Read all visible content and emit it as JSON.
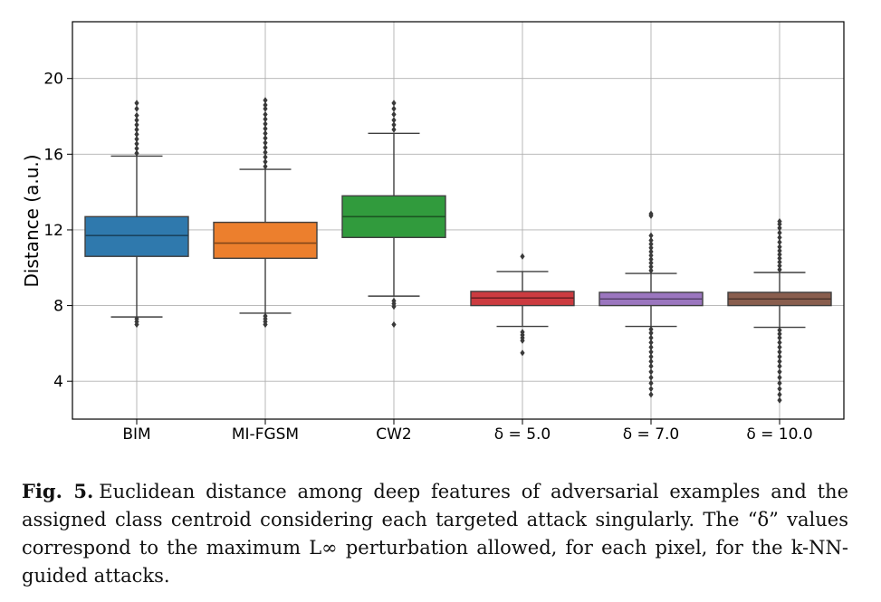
{
  "chart_data": {
    "type": "box",
    "title": "",
    "xlabel": "",
    "ylabel": "Distance (a.u.)",
    "ylim": [
      2,
      23
    ],
    "yticks": [
      4,
      8,
      12,
      16,
      20
    ],
    "grid": true,
    "categories": [
      "BIM",
      "MI-FGSM",
      "CW2",
      "δ = 5.0",
      "δ = 7.0",
      "δ = 10.0"
    ],
    "colors": [
      "#2f79ad",
      "#ec7f2d",
      "#319b3d",
      "#cc3b40",
      "#9b76bf",
      "#895e4e"
    ],
    "boxes": [
      {
        "whisker_low": 7.4,
        "q1": 10.6,
        "median": 11.7,
        "q3": 12.7,
        "whisker_high": 15.9,
        "outliers": [
          7.0,
          7.15,
          7.3,
          16.05,
          16.3,
          16.55,
          16.8,
          17.05,
          17.3,
          17.55,
          17.8,
          18.05,
          18.4,
          18.7
        ]
      },
      {
        "whisker_low": 7.6,
        "q1": 10.5,
        "median": 11.3,
        "q3": 12.4,
        "whisker_high": 15.2,
        "outliers": [
          7.0,
          7.15,
          7.3,
          7.45,
          15.35,
          15.6,
          15.85,
          16.1,
          16.35,
          16.6,
          16.85,
          17.1,
          17.35,
          17.6,
          17.85,
          18.1,
          18.4,
          18.6,
          18.85
        ]
      },
      {
        "whisker_low": 8.5,
        "q1": 11.6,
        "median": 12.7,
        "q3": 13.8,
        "whisker_high": 17.1,
        "outliers": [
          7.0,
          7.95,
          8.1,
          8.25,
          17.3,
          17.55,
          17.8,
          18.1,
          18.4,
          18.7
        ]
      },
      {
        "whisker_low": 6.9,
        "q1": 8.0,
        "median": 8.4,
        "q3": 8.75,
        "whisker_high": 9.8,
        "outliers": [
          5.5,
          6.15,
          6.3,
          6.45,
          6.6,
          10.6
        ]
      },
      {
        "whisker_low": 6.9,
        "q1": 8.0,
        "median": 8.35,
        "q3": 8.7,
        "whisker_high": 9.7,
        "outliers": [
          3.3,
          3.6,
          3.9,
          4.2,
          4.5,
          4.8,
          5.05,
          5.3,
          5.55,
          5.8,
          6.05,
          6.3,
          6.55,
          6.75,
          9.85,
          10.05,
          10.25,
          10.45,
          10.65,
          10.85,
          11.05,
          11.25,
          11.45,
          11.7,
          12.75,
          12.85
        ]
      },
      {
        "whisker_low": 6.85,
        "q1": 8.0,
        "median": 8.35,
        "q3": 8.7,
        "whisker_high": 9.75,
        "outliers": [
          3.0,
          3.3,
          3.6,
          3.9,
          4.2,
          4.5,
          4.8,
          5.05,
          5.3,
          5.55,
          5.8,
          6.05,
          6.3,
          6.5,
          6.7,
          9.9,
          10.1,
          10.3,
          10.5,
          10.7,
          10.9,
          11.1,
          11.35,
          11.6,
          11.85,
          12.1,
          12.3,
          12.45
        ]
      }
    ]
  },
  "caption": {
    "label": "Fig. 5.",
    "text": "Euclidean distance among deep features of adversarial examples and the assigned class centroid considering each targeted attack singularly. The “δ” values correspond to the maximum L∞ perturbation allowed, for each pixel, for the k-NN-guided attacks."
  }
}
